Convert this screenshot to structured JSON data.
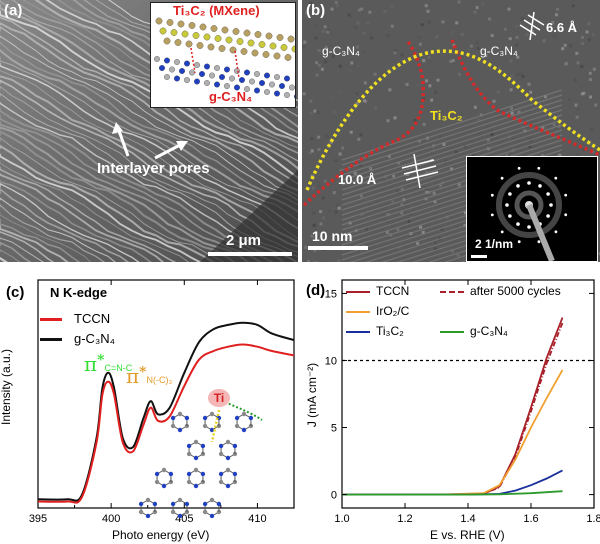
{
  "panel_a": {
    "label": "(a)",
    "inset_title": "Ti₃C₂ (MXene)",
    "inset_bottom": "g-C₃N₄",
    "annotation": "Interlayer pores",
    "scalebar": "2 μm"
  },
  "panel_b": {
    "label": "(b)",
    "left_region": "g-C₃N₄",
    "right_region": "g-C₃N₄",
    "center_region": "Ti₃C₂",
    "spacing_top": "6.6 Å",
    "spacing_bottom": "10.0 Å",
    "scalebar": "10 nm",
    "fft_scalebar": "2 1/nm"
  },
  "panel_c": {
    "label": "(c)",
    "title": "N K-edge",
    "legend_tccn": "TCCN",
    "legend_gcn": "g-C₃N₄",
    "peak1_pi": "π",
    "peak1_star": "*",
    "peak1_sub": "C=N-C",
    "peak2_pi": "π",
    "peak2_star": "*",
    "peak2_sub": "N(-C)₃",
    "ti_label": "Ti",
    "xlabel": "Photo energy (eV)",
    "ylabel": "Intensity (a.u.)",
    "x_ticks": [
      "395",
      "400",
      "405",
      "410"
    ],
    "colors": {
      "tccn": "#e02020",
      "gcn": "#111111",
      "pi1": "#33dd33",
      "pi2": "#e39b2a"
    }
  },
  "panel_d": {
    "label": "(d)",
    "xlabel": "E vs. RHE (V)",
    "ylabel": "J (mA cm⁻²)",
    "x_ticks": [
      "1.0",
      "1.2",
      "1.4",
      "1.6",
      "1.8"
    ],
    "y_ticks": [
      "0",
      "5",
      "10",
      "15"
    ],
    "legend": [
      "TCCN",
      "after 5000 cycles",
      "IrO₂/C",
      "g-C₃N₄",
      "Ti₃C₂"
    ]
  },
  "chart_data": [
    {
      "type": "line",
      "title": "N K-edge",
      "xlabel": "Photo energy (eV)",
      "ylabel": "Intensity (a.u.)",
      "xlim": [
        395,
        412.5
      ],
      "series": [
        {
          "name": "TCCN",
          "color": "#e02020",
          "x": [
            395,
            397,
            398,
            399,
            399.4,
            399.8,
            400.2,
            400.8,
            401.5,
            402.2,
            402.7,
            403.2,
            404.0,
            405.0,
            406.0,
            407.0,
            408.0,
            409.0,
            410.0,
            411.0,
            412.5
          ],
          "y": [
            0.03,
            0.03,
            0.05,
            0.3,
            0.52,
            0.58,
            0.52,
            0.3,
            0.26,
            0.38,
            0.46,
            0.4,
            0.42,
            0.56,
            0.68,
            0.72,
            0.74,
            0.75,
            0.74,
            0.72,
            0.7
          ]
        },
        {
          "name": "g-C₃N₄",
          "color": "#111111",
          "x": [
            395,
            397,
            398,
            399,
            399.4,
            399.8,
            400.2,
            400.8,
            401.5,
            402.2,
            402.7,
            403.2,
            404.0,
            405.0,
            406.0,
            407.0,
            408.0,
            409.0,
            410.0,
            411.0,
            412.5
          ],
          "y": [
            0.04,
            0.04,
            0.06,
            0.32,
            0.55,
            0.62,
            0.55,
            0.32,
            0.28,
            0.41,
            0.49,
            0.43,
            0.46,
            0.62,
            0.76,
            0.82,
            0.84,
            0.85,
            0.84,
            0.8,
            0.77
          ]
        }
      ]
    },
    {
      "type": "line",
      "xlabel": "E vs. RHE (V)",
      "ylabel": "J (mA cm⁻²)",
      "xlim": [
        1.0,
        1.8
      ],
      "ylim": [
        -1,
        16
      ],
      "reference_line_y": 10,
      "series": [
        {
          "name": "TCCN",
          "color": "#a8202a",
          "dash": false,
          "x": [
            1.0,
            1.3,
            1.45,
            1.5,
            1.55,
            1.6,
            1.65,
            1.7
          ],
          "y": [
            0,
            0,
            0.05,
            0.6,
            3.0,
            6.5,
            10.2,
            13.2
          ]
        },
        {
          "name": "after 5000 cycles",
          "color": "#a8202a",
          "dash": true,
          "x": [
            1.0,
            1.3,
            1.45,
            1.5,
            1.55,
            1.6,
            1.65,
            1.7
          ],
          "y": [
            0,
            0,
            0.05,
            0.55,
            2.8,
            6.2,
            9.8,
            12.8
          ]
        },
        {
          "name": "IrO₂/C",
          "color": "#f0a030",
          "dash": false,
          "x": [
            1.0,
            1.3,
            1.45,
            1.5,
            1.55,
            1.6,
            1.65,
            1.7
          ],
          "y": [
            0,
            0,
            0.1,
            0.7,
            2.6,
            5.0,
            7.2,
            9.3
          ]
        },
        {
          "name": "Ti₃C₂",
          "color": "#1a2f9c",
          "dash": false,
          "x": [
            1.0,
            1.4,
            1.5,
            1.55,
            1.6,
            1.65,
            1.7
          ],
          "y": [
            0,
            0,
            0.05,
            0.3,
            0.7,
            1.2,
            1.8
          ]
        },
        {
          "name": "g-C₃N₄",
          "color": "#2a9a2a",
          "dash": false,
          "x": [
            1.0,
            1.4,
            1.5,
            1.6,
            1.7
          ],
          "y": [
            0,
            0,
            0.02,
            0.1,
            0.25
          ]
        }
      ]
    }
  ]
}
